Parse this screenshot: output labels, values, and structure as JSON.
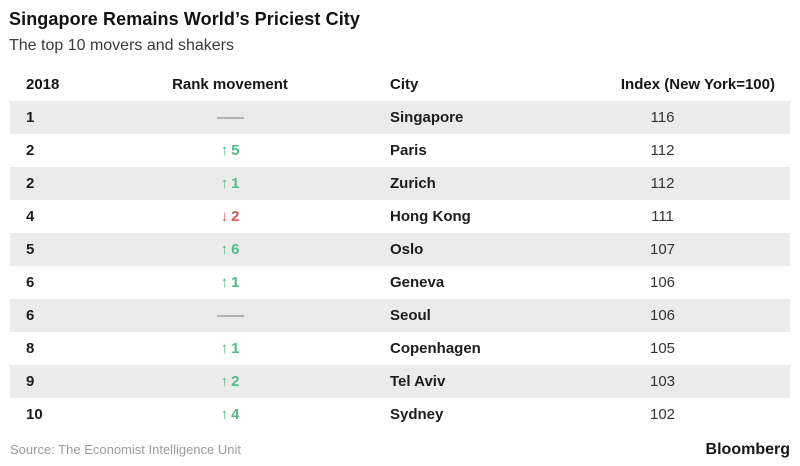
{
  "colors": {
    "up": "#53ba89",
    "down": "#d9565e",
    "stripe": "#ebebeb",
    "dash": "#b0b0b0"
  },
  "header": {
    "title": "Singapore Remains World’s Priciest City",
    "subtitle": "The top 10 movers and shakers"
  },
  "table": {
    "columns": [
      "2018",
      "Rank movement",
      "City",
      "Index (New York=100)"
    ],
    "rows": [
      {
        "rank": "1",
        "direction": "none",
        "arrow": "",
        "movement": "",
        "city": "Singapore",
        "index": "116"
      },
      {
        "rank": "2",
        "direction": "up",
        "arrow": "↑",
        "movement": "5",
        "city": "Paris",
        "index": "112"
      },
      {
        "rank": "2",
        "direction": "up",
        "arrow": "↑",
        "movement": "1",
        "city": "Zurich",
        "index": "112"
      },
      {
        "rank": "4",
        "direction": "down",
        "arrow": "↓",
        "movement": "2",
        "city": "Hong Kong",
        "index": "111"
      },
      {
        "rank": "5",
        "direction": "up",
        "arrow": "↑",
        "movement": "6",
        "city": "Oslo",
        "index": "107"
      },
      {
        "rank": "6",
        "direction": "up",
        "arrow": "↑",
        "movement": "1",
        "city": "Geneva",
        "index": "106"
      },
      {
        "rank": "6",
        "direction": "none",
        "arrow": "",
        "movement": "",
        "city": "Seoul",
        "index": "106"
      },
      {
        "rank": "8",
        "direction": "up",
        "arrow": "↑",
        "movement": "1",
        "city": "Copenhagen",
        "index": "105"
      },
      {
        "rank": "9",
        "direction": "up",
        "arrow": "↑",
        "movement": "2",
        "city": "Tel Aviv",
        "index": "103"
      },
      {
        "rank": "10",
        "direction": "up",
        "arrow": "↑",
        "movement": "4",
        "city": "Sydney",
        "index": "102"
      }
    ]
  },
  "footer": {
    "source": "Source: The Economist Intelligence Unit",
    "brand": "Bloomberg"
  },
  "chart_data": {
    "type": "table",
    "title": "Singapore Remains World’s Priciest City",
    "subtitle": "The top 10 movers and shakers",
    "columns": [
      "2018",
      "Rank movement",
      "City",
      "Index (New York=100)"
    ],
    "rows": [
      {
        "rank": 1,
        "rank_movement": 0,
        "city": "Singapore",
        "index": 116
      },
      {
        "rank": 2,
        "rank_movement": 5,
        "city": "Paris",
        "index": 112
      },
      {
        "rank": 2,
        "rank_movement": 1,
        "city": "Zurich",
        "index": 112
      },
      {
        "rank": 4,
        "rank_movement": -2,
        "city": "Hong Kong",
        "index": 111
      },
      {
        "rank": 5,
        "rank_movement": 6,
        "city": "Oslo",
        "index": 107
      },
      {
        "rank": 6,
        "rank_movement": 1,
        "city": "Geneva",
        "index": 106
      },
      {
        "rank": 6,
        "rank_movement": 0,
        "city": "Seoul",
        "index": 106
      },
      {
        "rank": 8,
        "rank_movement": 1,
        "city": "Copenhagen",
        "index": 105
      },
      {
        "rank": 9,
        "rank_movement": 2,
        "city": "Tel Aviv",
        "index": 103
      },
      {
        "rank": 10,
        "rank_movement": 4,
        "city": "Sydney",
        "index": 102
      }
    ],
    "source": "Source: The Economist Intelligence Unit",
    "brand": "Bloomberg"
  }
}
